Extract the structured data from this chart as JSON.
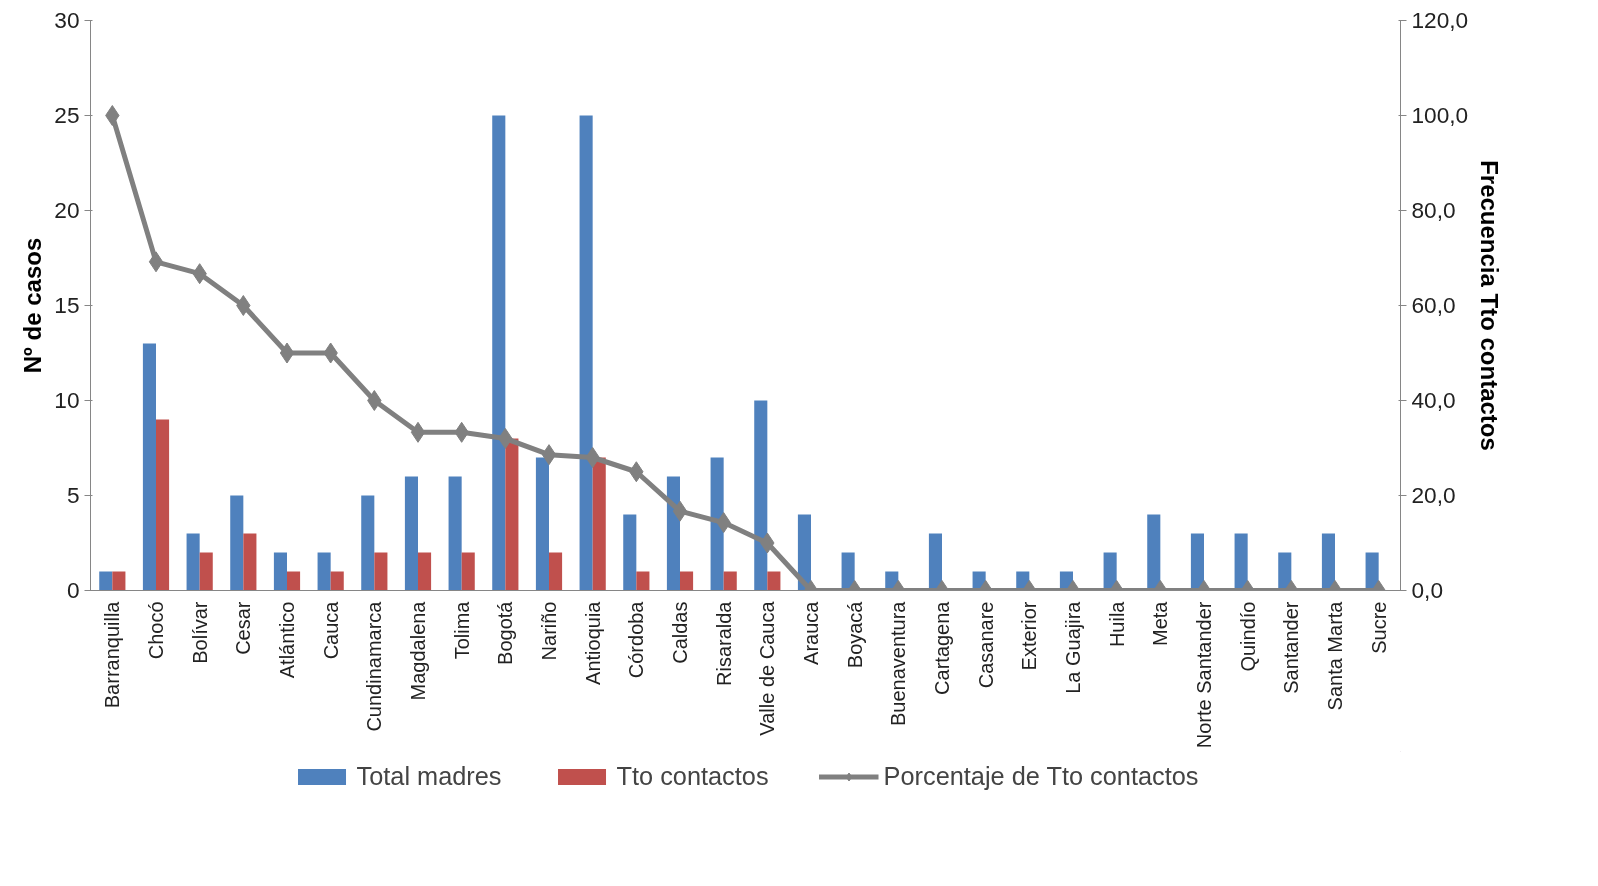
{
  "chart_data": {
    "type": "bar",
    "ylabel": "Nº de casos",
    "y2label": "Frecuencia Tto contactos",
    "categories": [
      "Barranquilla",
      "Chocó",
      "Bolívar",
      "Cesar",
      "Atlántico",
      "Cauca",
      "Cundinamarca",
      "Magdalena",
      "Tolima",
      "Bogotá",
      "Nariño",
      "Antioquia",
      "Córdoba",
      "Caldas",
      "Risaralda",
      "Valle de Cauca",
      "Arauca",
      "Boyacá",
      "Buenaventura",
      "Cartagena",
      "Casanare",
      "Exterior",
      "La Guajira",
      "Huila",
      "Meta",
      "Norte Santander",
      "Quindío",
      "Santander",
      "Santa Marta",
      "Sucre"
    ],
    "series": [
      {
        "name": "Total madres",
        "color": "#4f81bd",
        "values": [
          1,
          13,
          3,
          5,
          2,
          2,
          5,
          6,
          6,
          25,
          7,
          25,
          4,
          6,
          7,
          10,
          4,
          2,
          1,
          3,
          1,
          1,
          1,
          2,
          4,
          3,
          3,
          2,
          3,
          2
        ]
      },
      {
        "name": "Tto contactos",
        "color": "#c0504d",
        "values": [
          1,
          9,
          2,
          3,
          1,
          1,
          2,
          2,
          2,
          8,
          2,
          7,
          1,
          1,
          1,
          1,
          0,
          0,
          0,
          0,
          0,
          0,
          0,
          0,
          0,
          0,
          0,
          0,
          0,
          0
        ]
      },
      {
        "name": "Porcentaje de Tto contactos",
        "color": "#808080",
        "type": "line",
        "axis": "y2",
        "marker": "diamond",
        "line_style": "solid",
        "values": [
          100,
          69.2,
          66.7,
          60,
          50,
          50,
          40,
          33.3,
          33.3,
          32,
          28.6,
          28,
          25,
          16.7,
          14.3,
          10,
          0,
          0,
          0,
          0,
          0,
          0,
          0,
          0,
          0,
          0,
          0,
          0,
          0,
          0
        ]
      }
    ],
    "ylim": [
      0,
      30
    ],
    "yticks": [
      0,
      5,
      10,
      15,
      20,
      25,
      30
    ],
    "y2lim": [
      0,
      120
    ],
    "y2ticks": [
      {
        "value": 0,
        "label": "0,0"
      },
      {
        "value": 20,
        "label": "20,0"
      },
      {
        "value": 40,
        "label": "40,0"
      },
      {
        "value": 60,
        "label": "60,0"
      },
      {
        "value": 80,
        "label": "80,0"
      },
      {
        "value": 100,
        "label": "100,0"
      },
      {
        "value": 120,
        "label": "120,0"
      }
    ],
    "legend": "bottom"
  }
}
